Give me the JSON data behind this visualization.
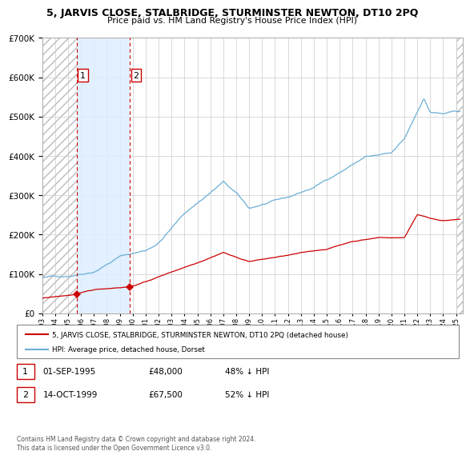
{
  "title": "5, JARVIS CLOSE, STALBRIDGE, STURMINSTER NEWTON, DT10 2PQ",
  "subtitle": "Price paid vs. HM Land Registry's House Price Index (HPI)",
  "purchases": [
    {
      "date_year": 1995.67,
      "price": 48000,
      "label": "1"
    },
    {
      "date_year": 1999.79,
      "price": 67500,
      "label": "2"
    }
  ],
  "purchase_info": [
    {
      "label": "1",
      "date": "01-SEP-1995",
      "price": "£48,000",
      "hpi": "48% ↓ HPI"
    },
    {
      "label": "2",
      "date": "14-OCT-1999",
      "price": "£67,500",
      "hpi": "52% ↓ HPI"
    }
  ],
  "legend_line1": "5, JARVIS CLOSE, STALBRIDGE, STURMINSTER NEWTON, DT10 2PQ (detached house)",
  "legend_line2": "HPI: Average price, detached house, Dorset",
  "footer": "Contains HM Land Registry data © Crown copyright and database right 2024.\nThis data is licensed under the Open Government Licence v3.0.",
  "hpi_color": "#6baed6",
  "price_color": "#cc0000",
  "marker_color": "#cc0000",
  "dashed_line_color": "#cc0000",
  "highlight_color": "#ddeeff",
  "ylim": [
    0,
    700000
  ],
  "xlim_start": 1993.0,
  "xlim_end": 2025.5,
  "purchase1_x": 1995.67,
  "purchase2_x": 1999.79
}
